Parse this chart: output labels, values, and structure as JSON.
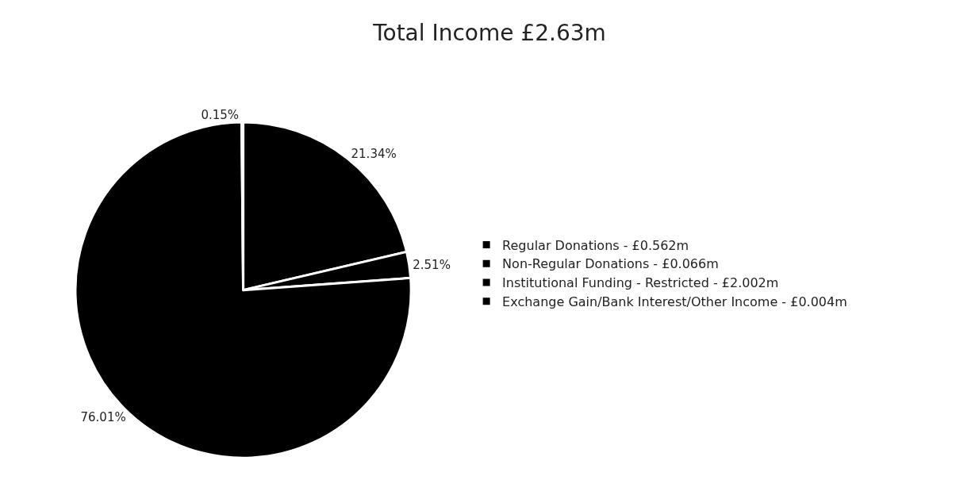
{
  "chart_data": {
    "type": "pie",
    "title": "Total Income £2.63m",
    "categories": [
      "Regular Donations - £0.562m",
      "Non-Regular Donations - £0.066m",
      "Institutional Funding - Restricted - £2.002m",
      "Exchange Gain/Bank Interest/Other Income - £0.004m"
    ],
    "values": [
      21.34,
      2.51,
      76.01,
      0.15
    ],
    "value_labels": [
      "21.34%",
      "2.51%",
      "76.01%",
      "0.15%"
    ],
    "colors": [
      "#000000",
      "#000000",
      "#000000",
      "#000000"
    ],
    "legend": "right"
  }
}
